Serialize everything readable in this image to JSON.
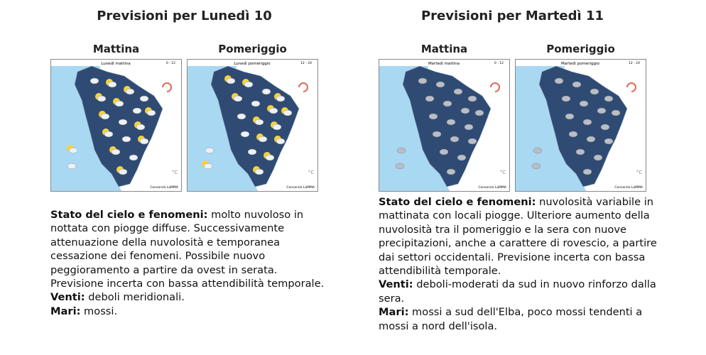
{
  "days": [
    {
      "title": "Previsioni per Lunedì 10",
      "panels": [
        {
          "label": "Mattina",
          "map_title": "Lunedì mattina",
          "map_hours": "0 - 12",
          "map_credit": "Consorzio LaMMA",
          "map_unit": "°C"
        },
        {
          "label": "Pomeriggio",
          "map_title": "Lunedì pomeriggio",
          "map_hours": "12 - 24",
          "map_credit": "Consorzio LaMMA",
          "map_unit": "°C"
        }
      ],
      "description": [
        {
          "label": "Stato del cielo e fenomeni:",
          "text": "molto nuvoloso in nottata con piogge diffuse. Successivamente attenuazione della nuvolosità e temporanea cessazione dei fenomeni. Possibile nuovo peggioramento a partire da ovest in serata. Previsione incerta con bassa attendibilità temporale."
        },
        {
          "label": "Venti:",
          "text": "deboli meridionali."
        },
        {
          "label": "Mari:",
          "text": "mossi."
        }
      ]
    },
    {
      "title": "Previsioni per Martedì 11",
      "panels": [
        {
          "label": "Mattina",
          "map_title": "Martedì mattina",
          "map_hours": "0 - 12",
          "map_credit": "Consorzio LaMMA",
          "map_unit": "°C"
        },
        {
          "label": "Pomeriggio",
          "map_title": "Martedì pomeriggio",
          "map_hours": "12 - 24",
          "map_credit": "Consorzio LaMMA",
          "map_unit": "°C"
        }
      ],
      "description": [
        {
          "label": "Stato del cielo e fenomeni:",
          "text": "nuvolosità variabile in mattinata con locali piogge. Ulteriore aumento della nuvolosità tra il pomeriggio e la sera con nuove precipitazioni, anche a carattere di rovescio, a partire dai settori occidentali. Previsione incerta con bassa attendibilità temporale."
        },
        {
          "label": "Venti:",
          "text": "deboli-moderati da sud in nuovo rinforzo dalla sera."
        },
        {
          "label": "Mari:",
          "text": "mossi a sud dell'Elba, poco mossi tendenti a mossi a nord dell'isola."
        }
      ]
    }
  ]
}
